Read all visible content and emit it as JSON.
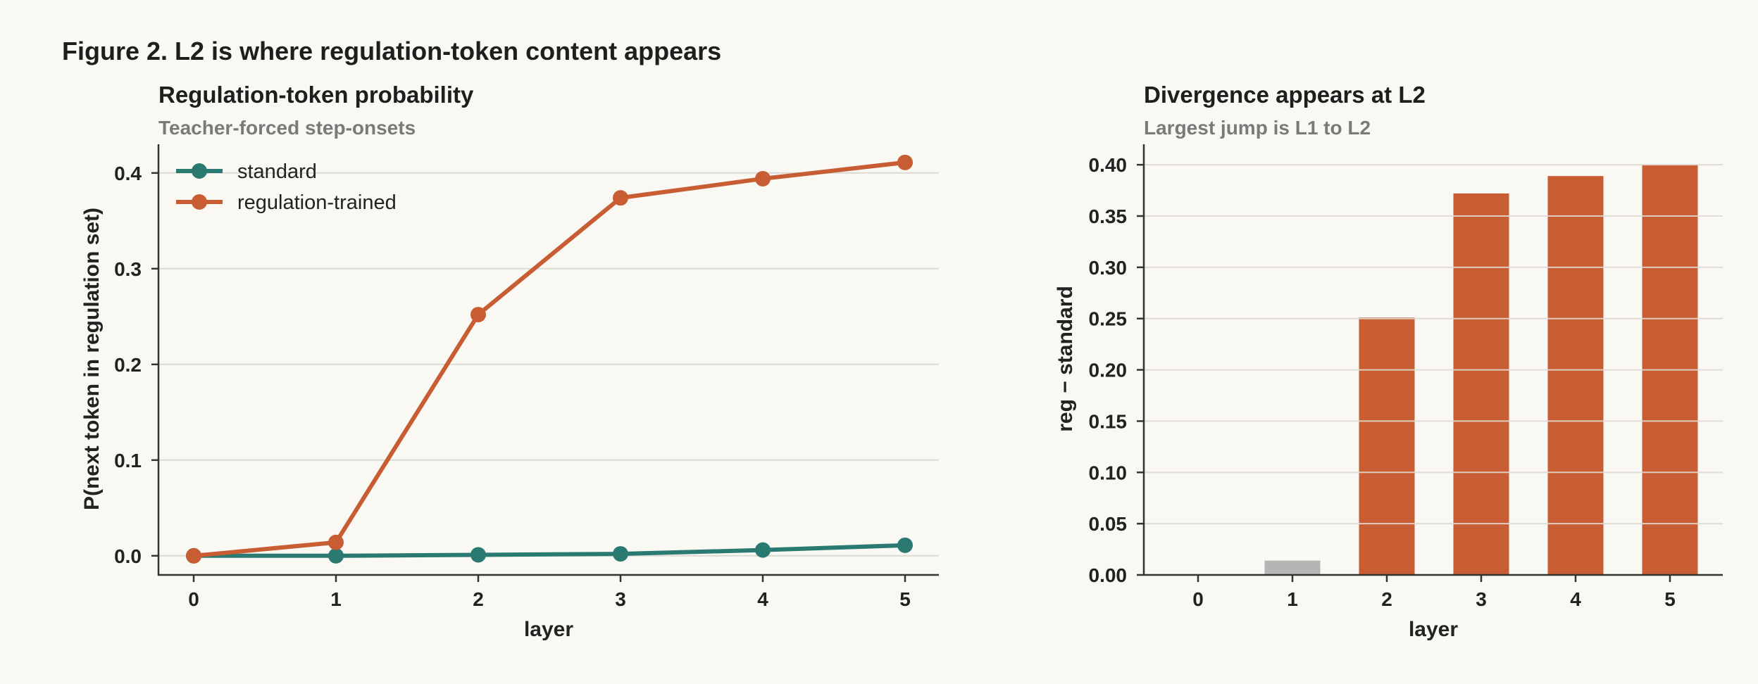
{
  "figure_title": "Figure 2. L2 is where regulation-token content appears",
  "colors": {
    "standard": "#2b7a72",
    "regulation": "#c85c32",
    "muted_bar": "#b5b5b5",
    "background": "#faf8f3"
  },
  "chart_data": [
    {
      "type": "line",
      "title": "Regulation-token probability",
      "subtitle": "Teacher-forced step-onsets",
      "xlabel": "layer",
      "ylabel": "P(next token in regulation set)",
      "x": [
        0,
        1,
        2,
        3,
        4,
        5
      ],
      "x_ticks": [
        "0",
        "1",
        "2",
        "3",
        "4",
        "5"
      ],
      "y_ticks": [
        "0.0",
        "0.1",
        "0.2",
        "0.3",
        "0.4"
      ],
      "ylim": [
        -0.02,
        0.43
      ],
      "grid": "horizontal",
      "legend_position": "top-left",
      "series": [
        {
          "name": "standard",
          "color": "#2b7a72",
          "values": [
            0.0,
            0.0,
            0.001,
            0.002,
            0.006,
            0.011
          ]
        },
        {
          "name": "regulation-trained",
          "color": "#c85c32",
          "values": [
            0.0,
            0.014,
            0.252,
            0.374,
            0.394,
            0.411
          ]
        }
      ]
    },
    {
      "type": "bar",
      "title": "Divergence appears at L2",
      "subtitle": "Largest jump is L1 to L2",
      "xlabel": "layer",
      "ylabel": "reg − standard",
      "categories": [
        "0",
        "1",
        "2",
        "3",
        "4",
        "5"
      ],
      "values": [
        0.0,
        0.014,
        0.251,
        0.372,
        0.389,
        0.4
      ],
      "bar_colors": [
        "#b5b5b5",
        "#b5b5b5",
        "#c85c32",
        "#c85c32",
        "#c85c32",
        "#c85c32"
      ],
      "y_ticks": [
        "0.00",
        "0.05",
        "0.10",
        "0.15",
        "0.20",
        "0.25",
        "0.30",
        "0.35",
        "0.40"
      ],
      "ylim": [
        0,
        0.42
      ],
      "grid": "horizontal"
    }
  ]
}
